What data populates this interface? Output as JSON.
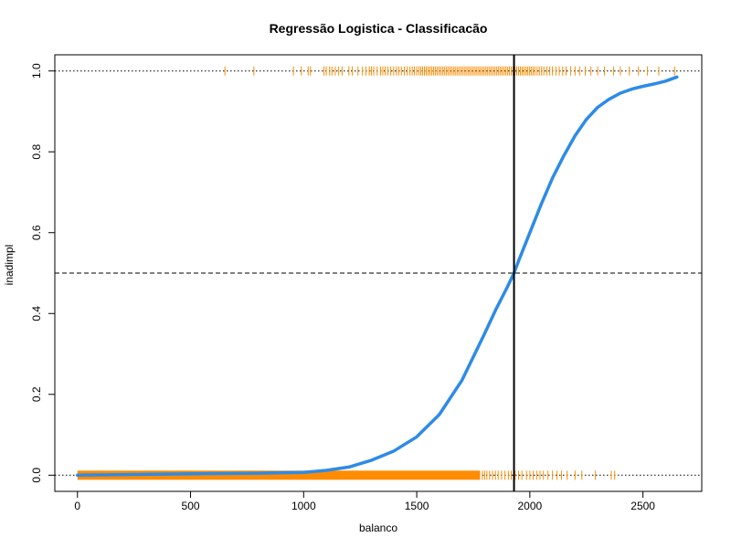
{
  "chart_data": {
    "type": "scatter",
    "title": "Regressão Logistica - Classificacão",
    "xlabel": "balanco",
    "ylabel": "inadimpl",
    "xlim": [
      -100,
      2760
    ],
    "ylim": [
      -0.04,
      1.04
    ],
    "x_ticks": [
      0,
      500,
      1000,
      1500,
      2000,
      2500
    ],
    "y_ticks": [
      0.0,
      0.2,
      0.4,
      0.6,
      0.8,
      1.0
    ],
    "x_tick_labels": [
      "0",
      "500",
      "1000",
      "1500",
      "2000",
      "2500"
    ],
    "y_tick_labels": [
      "0.0",
      "0.2",
      "0.4",
      "0.6",
      "0.8",
      "1.0"
    ],
    "reference_lines": {
      "horizontal_dotted": [
        0,
        1
      ],
      "horizontal_dashed": [
        0.5
      ],
      "vertical_solid": [
        1930
      ]
    },
    "colors": {
      "points": "#FF8C00",
      "curve": "#2E8BE6",
      "reference": "#000000"
    },
    "rug_y1": [
      652,
      780,
      955,
      990,
      1020,
      1030,
      1090,
      1100,
      1115,
      1125,
      1140,
      1155,
      1170,
      1200,
      1215,
      1240,
      1260,
      1275,
      1290,
      1300,
      1310,
      1325,
      1340,
      1350,
      1360,
      1372,
      1385,
      1398,
      1410,
      1420,
      1432,
      1445,
      1458,
      1470,
      1480,
      1490,
      1500,
      1510,
      1518,
      1526,
      1534,
      1542,
      1550,
      1558,
      1566,
      1574,
      1582,
      1590,
      1598,
      1606,
      1614,
      1622,
      1630,
      1638,
      1646,
      1654,
      1662,
      1670,
      1678,
      1686,
      1694,
      1702,
      1710,
      1718,
      1726,
      1734,
      1742,
      1750,
      1758,
      1766,
      1774,
      1782,
      1790,
      1798,
      1806,
      1814,
      1822,
      1830,
      1838,
      1846,
      1854,
      1862,
      1870,
      1878,
      1886,
      1894,
      1902,
      1910,
      1918,
      1926,
      1934,
      1942,
      1950,
      1958,
      1966,
      1974,
      1982,
      1990,
      1998,
      2006,
      2014,
      2022,
      2032,
      2042,
      2052,
      2062,
      2075,
      2088,
      2100,
      2115,
      2130,
      2145,
      2160,
      2180,
      2200,
      2220,
      2245,
      2270,
      2300,
      2330,
      2370,
      2400,
      2440,
      2480,
      2520,
      2570,
      2640
    ],
    "rug_y0_dense_range": [
      0,
      1780
    ],
    "rug_y0_extra": [
      1790,
      1800,
      1810,
      1822,
      1835,
      1848,
      1860,
      1875,
      1890,
      1905,
      1918,
      1935,
      1950,
      1965,
      1985,
      2000,
      2015,
      2030,
      2045,
      2060,
      2080,
      2100,
      2120,
      2140,
      2165,
      2200,
      2230,
      2290,
      2360,
      2375
    ],
    "logistic_curve": {
      "x": [
        0,
        600,
        800,
        900,
        1000,
        1100,
        1200,
        1300,
        1400,
        1500,
        1600,
        1700,
        1800,
        1850,
        1900,
        1930,
        1950,
        2000,
        2050,
        2100,
        2150,
        2200,
        2250,
        2300,
        2350,
        2400,
        2450,
        2500,
        2550,
        2600,
        2650
      ],
      "y": [
        0.0,
        0.004,
        0.005,
        0.006,
        0.007,
        0.012,
        0.02,
        0.037,
        0.06,
        0.095,
        0.15,
        0.235,
        0.35,
        0.41,
        0.465,
        0.5,
        0.53,
        0.6,
        0.67,
        0.735,
        0.79,
        0.84,
        0.88,
        0.91,
        0.93,
        0.945,
        0.955,
        0.962,
        0.968,
        0.975,
        0.985
      ]
    }
  }
}
